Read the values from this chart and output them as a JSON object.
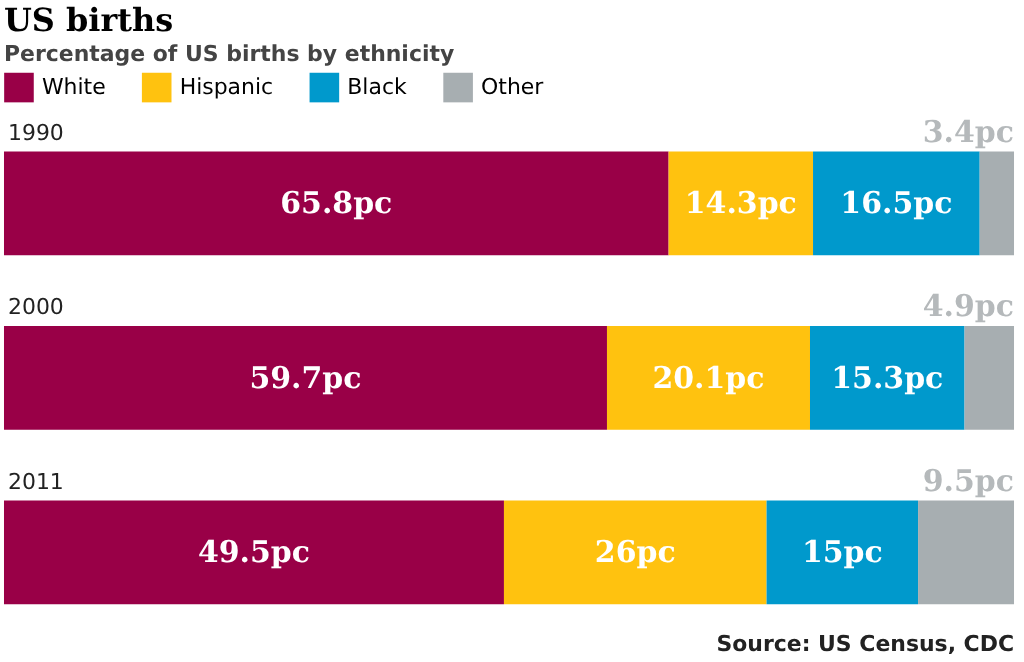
{
  "chart_data": {
    "type": "bar",
    "orientation": "horizontal",
    "stacked": true,
    "title": "US births",
    "subtitle": "Percentage of US births by ethnicity",
    "categories": [
      "1990",
      "2000",
      "2011"
    ],
    "series": [
      {
        "name": "White",
        "color": "#990047",
        "values": [
          65.8,
          59.7,
          49.5
        ],
        "value_labels": [
          "65.8pc",
          "59.7pc",
          "49.5pc"
        ]
      },
      {
        "name": "Hispanic",
        "color": "#ffc20f",
        "values": [
          14.3,
          20.1,
          26
        ],
        "value_labels": [
          "14.3pc",
          "20.1pc",
          "26pc"
        ]
      },
      {
        "name": "Black",
        "color": "#0099cc",
        "values": [
          16.5,
          15.3,
          15
        ],
        "value_labels": [
          "16.5pc",
          "15.3pc",
          "15pc"
        ]
      },
      {
        "name": "Other",
        "color": "#a7aeb1",
        "values": [
          3.4,
          4.9,
          9.5
        ],
        "value_labels": [
          "3.4pc",
          "4.9pc",
          "9.5pc"
        ]
      }
    ],
    "xlim": [
      0,
      100
    ],
    "tick_labels": false,
    "legend": "top left",
    "annotations": [
      "Source: US Census, CDC"
    ]
  }
}
